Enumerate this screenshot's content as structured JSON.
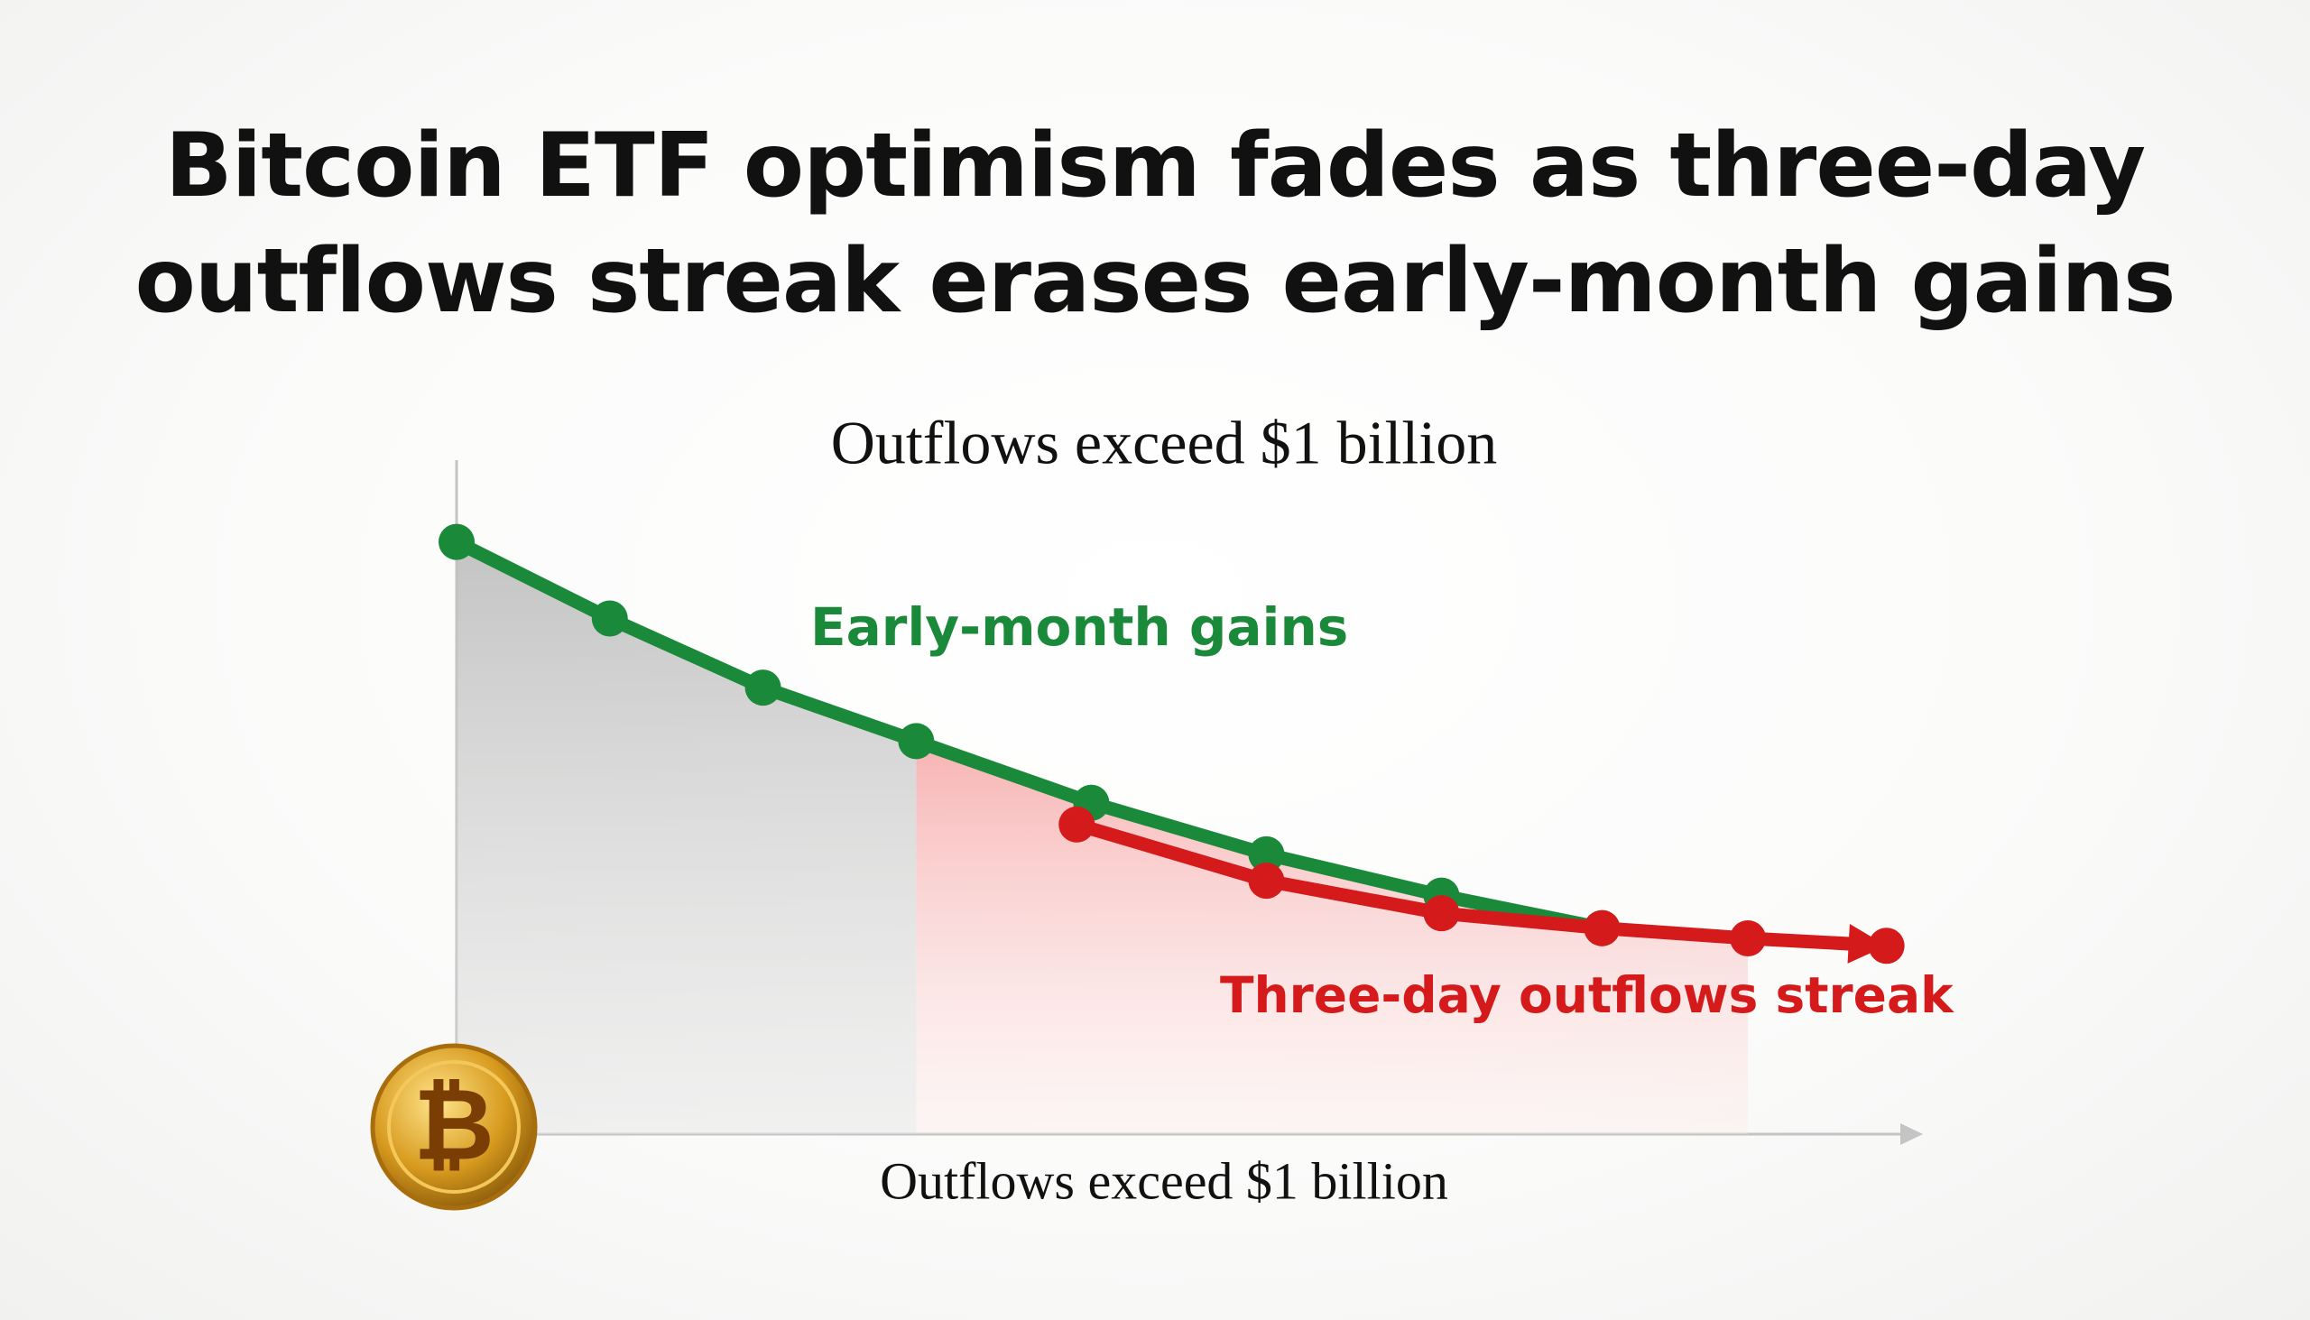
{
  "chart_data": {
    "type": "line",
    "title": "Bitcoin ETF optimism fades as three-day outflows streak erases early-month gains",
    "subtitle": "Outflows exceed $1 billion",
    "x_label": "Outflows exceed $1 billion",
    "icon": "₿",
    "xlim": [
      0,
      100
    ],
    "ylim": [
      0,
      100
    ],
    "series": [
      {
        "name": "Early-month gains",
        "color": "#1a8a3a",
        "x": [
          0,
          10.5,
          21,
          31.5,
          43.5,
          55.5,
          67.5,
          78.5
        ],
        "values": [
          87.4,
          76.1,
          65.9,
          58,
          48.9,
          41.3,
          35.2,
          30.4
        ]
      },
      {
        "name": "Three-day outflows streak",
        "color": "#d41a1a",
        "x": [
          42.5,
          55.5,
          67.5,
          78.5,
          88.5,
          98
        ],
        "values": [
          45.7,
          37.4,
          32.6,
          30.4,
          28.9,
          27.8
        ]
      }
    ]
  }
}
